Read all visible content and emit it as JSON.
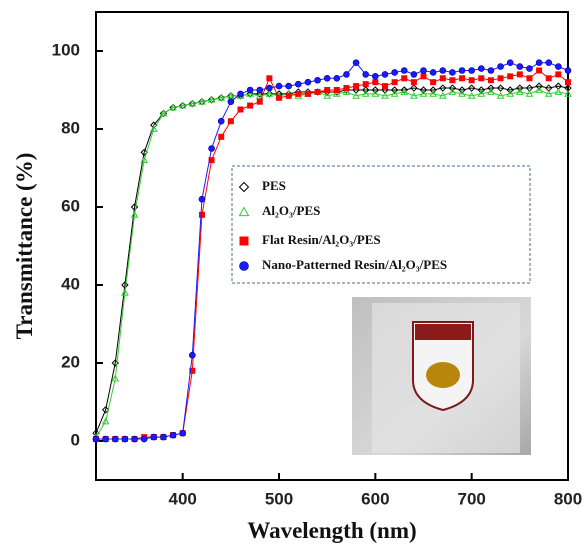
{
  "chart_data": {
    "type": "line",
    "x_label": "Wavelength (nm)",
    "y_label": "Transmittance (%)",
    "x": [
      310,
      320,
      330,
      340,
      350,
      360,
      370,
      380,
      390,
      400,
      410,
      420,
      430,
      440,
      450,
      460,
      470,
      480,
      490,
      500,
      510,
      520,
      530,
      540,
      550,
      560,
      570,
      580,
      590,
      600,
      610,
      620,
      630,
      640,
      650,
      660,
      670,
      680,
      690,
      700,
      710,
      720,
      730,
      740,
      750,
      760,
      770,
      780,
      790,
      800
    ],
    "series": [
      {
        "name": "PES",
        "color": "#000000",
        "marker": "diamond",
        "values": [
          2,
          8,
          20,
          40,
          60,
          74,
          81,
          84,
          85.5,
          86,
          86.5,
          87,
          87.5,
          88,
          88.5,
          88.5,
          89,
          89,
          89,
          89,
          89,
          89.5,
          89.5,
          89.5,
          89.5,
          89.5,
          90,
          90,
          90,
          90,
          90,
          90,
          90,
          90.5,
          90,
          90,
          90.5,
          90.5,
          90,
          90.5,
          90,
          90.5,
          90.5,
          90,
          90.5,
          90.5,
          91,
          90.5,
          91,
          90.5
        ]
      },
      {
        "name": "Al₂O₃/PES",
        "color": "#33cc33",
        "marker": "triangle",
        "values": [
          1,
          5,
          16,
          38,
          58,
          72,
          80,
          84,
          85.5,
          86,
          86.5,
          87,
          87.5,
          88,
          88.5,
          88.5,
          89,
          88.5,
          89,
          88.5,
          89,
          88.5,
          89,
          89.5,
          88.5,
          89,
          89.5,
          88.5,
          89,
          89,
          88.5,
          89,
          89.5,
          88.5,
          89,
          89,
          88.5,
          89.5,
          89,
          88.5,
          89,
          89.5,
          88.5,
          89,
          89.5,
          89,
          90,
          89,
          89.5,
          89
        ]
      },
      {
        "name": "Flat Resin/Al₂O₃/PES",
        "color": "#ff0000",
        "marker": "square",
        "values": [
          0.5,
          0.5,
          0.5,
          0.5,
          0.5,
          1,
          1,
          1,
          1.5,
          2,
          18,
          58,
          72,
          78,
          82,
          85,
          86,
          87,
          93,
          88,
          88.5,
          89,
          89,
          89.5,
          90,
          90,
          90.5,
          91,
          91.5,
          92,
          91,
          92,
          93,
          92,
          93.5,
          92,
          93,
          92.5,
          93,
          92.5,
          93,
          92.5,
          93,
          93.5,
          94,
          93,
          95,
          93,
          94,
          92
        ]
      },
      {
        "name": "Nano-Patterned  Resin/Al₂O₃/PES",
        "color": "#1a1aff",
        "marker": "circle",
        "values": [
          0.5,
          0.5,
          0.5,
          0.5,
          0.5,
          0.5,
          1,
          1,
          1.5,
          2,
          22,
          62,
          75,
          82,
          87,
          89,
          90,
          90,
          90.5,
          91,
          91,
          91.5,
          92,
          92.5,
          93,
          93,
          94,
          97,
          94,
          93.5,
          94,
          94.5,
          95,
          94,
          95,
          94.5,
          95,
          94.5,
          95,
          95,
          95.5,
          95,
          96,
          97,
          96,
          95.5,
          97,
          97,
          96,
          95
        ]
      }
    ],
    "xlim": [
      310,
      800
    ],
    "ylim": [
      -10,
      110
    ],
    "xticks": [
      400,
      500,
      600,
      700,
      800
    ],
    "yticks": [
      0,
      20,
      40,
      60,
      80,
      100
    ]
  }
}
